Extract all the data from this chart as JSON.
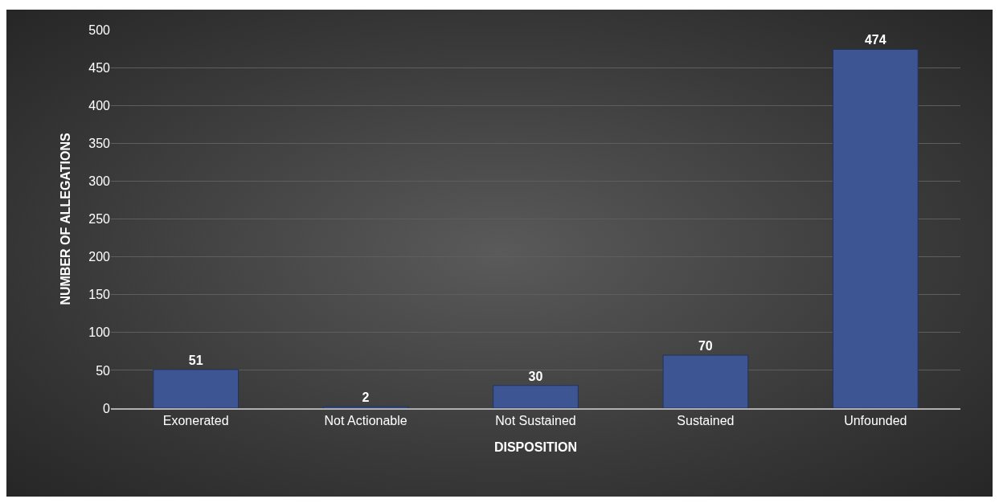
{
  "chart_data": {
    "type": "bar",
    "xlabel": "DISPOSITION",
    "ylabel": "NUMBER OF ALLEGATIONS",
    "categories": [
      "Exonerated",
      "Not Actionable",
      "Not Sustained",
      "Sustained",
      "Unfounded"
    ],
    "values": [
      51,
      2,
      30,
      70,
      474
    ],
    "color": "#3d5693",
    "data_labels": true,
    "ylim": [
      0,
      500
    ],
    "yticks": [
      0,
      50,
      100,
      150,
      200,
      250,
      300,
      350,
      400,
      450,
      500
    ],
    "grid": "y"
  }
}
